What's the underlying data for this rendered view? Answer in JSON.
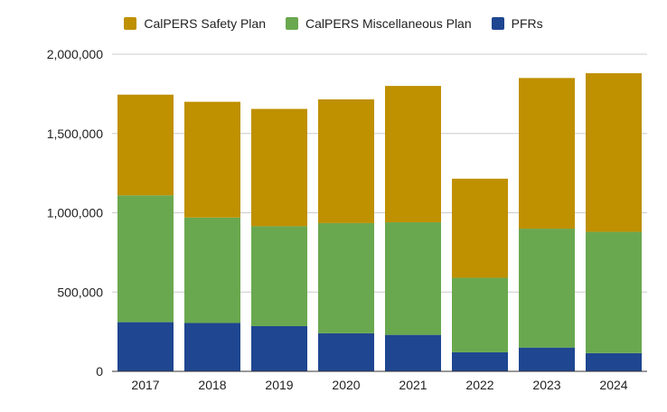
{
  "chart_data": {
    "type": "bar",
    "stacked": true,
    "categories": [
      "2017",
      "2018",
      "2019",
      "2020",
      "2021",
      "2022",
      "2023",
      "2024"
    ],
    "series": [
      {
        "name": "PFRs",
        "color": "#1f4690",
        "values": [
          310000,
          305000,
          285000,
          240000,
          230000,
          120000,
          150000,
          115000
        ]
      },
      {
        "name": "CalPERS Miscellaneous Plan",
        "color": "#6aa84f",
        "values": [
          800000,
          665000,
          630000,
          695000,
          710000,
          470000,
          750000,
          765000
        ]
      },
      {
        "name": "CalPERS Safety Plan",
        "color": "#bf9000",
        "values": [
          635000,
          730000,
          740000,
          780000,
          860000,
          625000,
          950000,
          1000000
        ]
      }
    ],
    "legend": [
      {
        "label": "CalPERS Safety Plan",
        "color": "#bf9000"
      },
      {
        "label": "CalPERS Miscellaneous Plan",
        "color": "#6aa84f"
      },
      {
        "label": "PFRs",
        "color": "#1f4690"
      }
    ],
    "legend_position": "top",
    "ylim": [
      0,
      2000000
    ],
    "yticks": [
      "0",
      "500,000",
      "1,000,000",
      "1,500,000",
      "2,000,000"
    ],
    "ytick_values": [
      0,
      500000,
      1000000,
      1500000,
      2000000
    ],
    "grid": true
  }
}
